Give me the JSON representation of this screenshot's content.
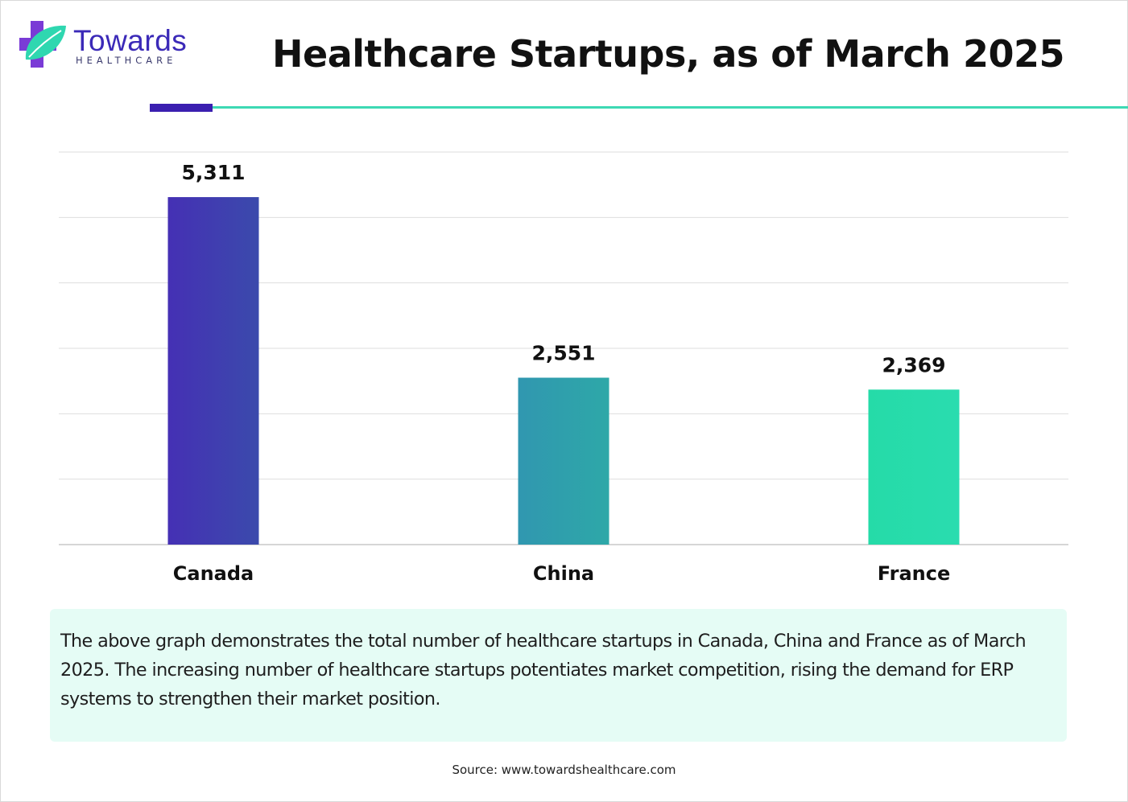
{
  "brand": {
    "name": "Towards",
    "sub": "HEALTHCARE"
  },
  "header": {
    "title": "Healthcare Startups, as of March 2025"
  },
  "chart_data": {
    "type": "bar",
    "categories": [
      "Canada",
      "China",
      "France"
    ],
    "values": [
      5311,
      2551,
      2369
    ],
    "value_labels": [
      "5,311",
      "2,551",
      "2,369"
    ],
    "title": "Healthcare Startups, as of March 2025",
    "xlabel": "",
    "ylabel": "",
    "ylim": [
      0,
      6000
    ],
    "grid": true,
    "legend": "none",
    "colors": [
      [
        "#4530b4",
        "#3b4aac"
      ],
      [
        "#3097b0",
        "#2ea8a8"
      ],
      [
        "#25dba8",
        "#2adcaf"
      ]
    ]
  },
  "description": "The above graph demonstrates the total number of healthcare startups in Canada, China and France as of March 2025. The increasing number of healthcare startups potentiates market competition, rising the demand for ERP systems to strengthen their market position.",
  "source": "Source: www.towardshealthcare.com"
}
